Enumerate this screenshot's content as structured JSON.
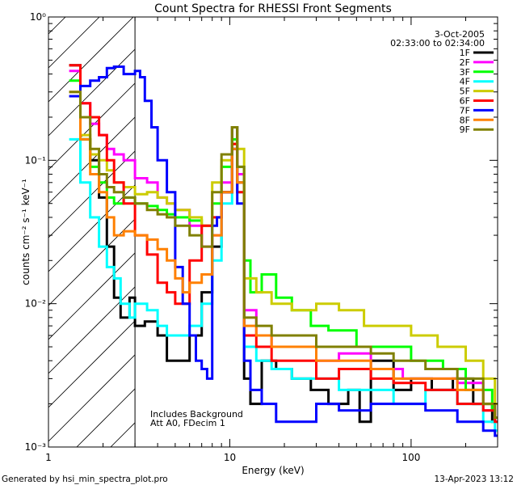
{
  "chart_data": {
    "type": "line",
    "title": "Count Spectra for RHESSI Front Segments",
    "xlabel": "Energy (keV)",
    "ylabel": "counts cm⁻² s⁻¹ keV⁻¹",
    "xscale": "log",
    "yscale": "log",
    "xlim": [
      1,
      300
    ],
    "ylim": [
      0.001,
      1
    ],
    "x_ticks": [
      {
        "value": 1,
        "label": "1"
      },
      {
        "value": 10,
        "label": "10"
      },
      {
        "value": 100,
        "label": "100"
      }
    ],
    "y_ticks": [
      {
        "value": 0.001,
        "label": "10⁻³"
      },
      {
        "value": 0.01,
        "label": "10⁻²"
      },
      {
        "value": 0.1,
        "label": "10⁻¹"
      },
      {
        "value": 1,
        "label": "10⁰"
      }
    ],
    "shaded_region": {
      "from": 1,
      "to": 3,
      "style": "diagonal-hatch"
    },
    "legend_location": "top-right",
    "date": "3-Oct-2005",
    "time_range": "02:33:00 to 02:34:00",
    "annotations": [
      "Includes Background",
      "Att A0, FDecim 1"
    ],
    "series": [
      {
        "name": "1F",
        "color": "#000000",
        "points": [
          [
            1.3,
            0.46
          ],
          [
            1.5,
            0.14
          ],
          [
            1.7,
            0.1
          ],
          [
            1.9,
            0.055
          ],
          [
            2.1,
            0.025
          ],
          [
            2.3,
            0.011
          ],
          [
            2.5,
            0.008
          ],
          [
            2.8,
            0.011
          ],
          [
            3.0,
            0.007
          ],
          [
            3.4,
            0.0075
          ],
          [
            4.0,
            0.006
          ],
          [
            4.5,
            0.004
          ],
          [
            5.0,
            0.004
          ],
          [
            6.0,
            0.006
          ],
          [
            7.0,
            0.012
          ],
          [
            8.0,
            0.025
          ],
          [
            9.0,
            0.06
          ],
          [
            10.3,
            0.17
          ],
          [
            11.0,
            0.07
          ],
          [
            12.0,
            0.003
          ],
          [
            13,
            0.002
          ],
          [
            15,
            0.004
          ],
          [
            18,
            0.0035
          ],
          [
            22,
            0.003
          ],
          [
            28,
            0.0025
          ],
          [
            35,
            0.002
          ],
          [
            45,
            0.0025
          ],
          [
            52,
            0.0015
          ],
          [
            60,
            0.004
          ],
          [
            80,
            0.0025
          ],
          [
            100,
            0.003
          ],
          [
            130,
            0.0025
          ],
          [
            170,
            0.003
          ],
          [
            220,
            0.002
          ],
          [
            280,
            0.0015
          ]
        ]
      },
      {
        "name": "2F",
        "color": "#ff00ff",
        "points": [
          [
            1.3,
            0.42
          ],
          [
            1.5,
            0.25
          ],
          [
            1.7,
            0.18
          ],
          [
            1.9,
            0.15
          ],
          [
            2.1,
            0.12
          ],
          [
            2.3,
            0.11
          ],
          [
            2.6,
            0.1
          ],
          [
            3.0,
            0.075
          ],
          [
            3.5,
            0.07
          ],
          [
            4.0,
            0.055
          ],
          [
            4.5,
            0.05
          ],
          [
            5.0,
            0.045
          ],
          [
            6.0,
            0.035
          ],
          [
            7.0,
            0.025
          ],
          [
            8.0,
            0.03
          ],
          [
            9.0,
            0.07
          ],
          [
            10.3,
            0.12
          ],
          [
            11.0,
            0.08
          ],
          [
            12.0,
            0.009
          ],
          [
            14,
            0.006
          ],
          [
            17,
            0.005
          ],
          [
            22,
            0.005
          ],
          [
            30,
            0.004
          ],
          [
            40,
            0.0045
          ],
          [
            60,
            0.0035
          ],
          [
            90,
            0.003
          ],
          [
            130,
            0.003
          ],
          [
            180,
            0.0028
          ],
          [
            250,
            0.0018
          ],
          [
            290,
            0.0015
          ]
        ]
      },
      {
        "name": "3F",
        "color": "#00ff00",
        "points": [
          [
            1.3,
            0.36
          ],
          [
            1.5,
            0.14
          ],
          [
            1.7,
            0.09
          ],
          [
            1.9,
            0.07
          ],
          [
            2.1,
            0.055
          ],
          [
            2.3,
            0.05
          ],
          [
            2.6,
            0.055
          ],
          [
            3.0,
            0.05
          ],
          [
            3.5,
            0.048
          ],
          [
            4.0,
            0.045
          ],
          [
            4.5,
            0.042
          ],
          [
            5.0,
            0.04
          ],
          [
            6.0,
            0.038
          ],
          [
            7.0,
            0.035
          ],
          [
            8.0,
            0.05
          ],
          [
            9.0,
            0.09
          ],
          [
            10.3,
            0.14
          ],
          [
            11.0,
            0.09
          ],
          [
            12.0,
            0.02
          ],
          [
            13,
            0.012
          ],
          [
            15,
            0.016
          ],
          [
            18,
            0.011
          ],
          [
            22,
            0.009
          ],
          [
            28,
            0.007
          ],
          [
            35,
            0.0065
          ],
          [
            50,
            0.005
          ],
          [
            70,
            0.005
          ],
          [
            100,
            0.004
          ],
          [
            150,
            0.0035
          ],
          [
            200,
            0.0025
          ],
          [
            280,
            0.0018
          ]
        ]
      },
      {
        "name": "4F",
        "color": "#00ffff",
        "points": [
          [
            1.3,
            0.14
          ],
          [
            1.5,
            0.07
          ],
          [
            1.7,
            0.04
          ],
          [
            1.9,
            0.025
          ],
          [
            2.1,
            0.018
          ],
          [
            2.3,
            0.015
          ],
          [
            2.5,
            0.01
          ],
          [
            2.8,
            0.008
          ],
          [
            3.0,
            0.01
          ],
          [
            3.5,
            0.009
          ],
          [
            4.0,
            0.007
          ],
          [
            4.5,
            0.006
          ],
          [
            5.0,
            0.006
          ],
          [
            6.0,
            0.007
          ],
          [
            7.0,
            0.01
          ],
          [
            8.0,
            0.02
          ],
          [
            9.0,
            0.05
          ],
          [
            10.3,
            0.13
          ],
          [
            11.0,
            0.06
          ],
          [
            12.0,
            0.005
          ],
          [
            14,
            0.004
          ],
          [
            17,
            0.0035
          ],
          [
            22,
            0.003
          ],
          [
            30,
            0.003
          ],
          [
            40,
            0.0025
          ],
          [
            60,
            0.0025
          ],
          [
            80,
            0.002
          ],
          [
            120,
            0.0025
          ],
          [
            180,
            0.002
          ],
          [
            250,
            0.0015
          ],
          [
            290,
            0.0013
          ]
        ]
      },
      {
        "name": "5F",
        "color": "#cccc00",
        "points": [
          [
            1.3,
            0.28
          ],
          [
            1.5,
            0.15
          ],
          [
            1.7,
            0.11
          ],
          [
            1.9,
            0.1
          ],
          [
            2.1,
            0.085
          ],
          [
            2.3,
            0.07
          ],
          [
            2.6,
            0.065
          ],
          [
            3.0,
            0.058
          ],
          [
            3.5,
            0.06
          ],
          [
            4.0,
            0.055
          ],
          [
            4.5,
            0.05
          ],
          [
            5.0,
            0.045
          ],
          [
            6.0,
            0.04
          ],
          [
            7.0,
            0.035
          ],
          [
            8.0,
            0.07
          ],
          [
            9.0,
            0.1
          ],
          [
            10.3,
            0.13
          ],
          [
            11.0,
            0.12
          ],
          [
            12.0,
            0.015
          ],
          [
            14,
            0.012
          ],
          [
            17,
            0.01
          ],
          [
            22,
            0.009
          ],
          [
            30,
            0.01
          ],
          [
            40,
            0.009
          ],
          [
            55,
            0.007
          ],
          [
            75,
            0.007
          ],
          [
            100,
            0.006
          ],
          [
            140,
            0.005
          ],
          [
            200,
            0.004
          ],
          [
            250,
            0.003
          ],
          [
            290,
            0.002
          ]
        ]
      },
      {
        "name": "6F",
        "color": "#ff0000",
        "points": [
          [
            1.3,
            0.46
          ],
          [
            1.5,
            0.25
          ],
          [
            1.7,
            0.2
          ],
          [
            1.9,
            0.15
          ],
          [
            2.1,
            0.1
          ],
          [
            2.3,
            0.07
          ],
          [
            2.6,
            0.05
          ],
          [
            3.0,
            0.03
          ],
          [
            3.5,
            0.022
          ],
          [
            4.0,
            0.014
          ],
          [
            4.5,
            0.012
          ],
          [
            5.0,
            0.01
          ],
          [
            6.0,
            0.02
          ],
          [
            7.0,
            0.035
          ],
          [
            8.0,
            0.04
          ],
          [
            9.0,
            0.06
          ],
          [
            10.3,
            0.13
          ],
          [
            11.0,
            0.06
          ],
          [
            12.0,
            0.006
          ],
          [
            14,
            0.005
          ],
          [
            17,
            0.004
          ],
          [
            22,
            0.004
          ],
          [
            30,
            0.003
          ],
          [
            40,
            0.0035
          ],
          [
            60,
            0.003
          ],
          [
            80,
            0.0028
          ],
          [
            120,
            0.0025
          ],
          [
            180,
            0.002
          ],
          [
            250,
            0.0018
          ],
          [
            290,
            0.0015
          ]
        ]
      },
      {
        "name": "7F",
        "color": "#0000ff",
        "points": [
          [
            1.3,
            0.28
          ],
          [
            1.5,
            0.33
          ],
          [
            1.7,
            0.36
          ],
          [
            1.9,
            0.38
          ],
          [
            2.1,
            0.44
          ],
          [
            2.3,
            0.45
          ],
          [
            2.6,
            0.4
          ],
          [
            3.0,
            0.42
          ],
          [
            3.2,
            0.38
          ],
          [
            3.4,
            0.26
          ],
          [
            3.7,
            0.17
          ],
          [
            4.0,
            0.1
          ],
          [
            4.5,
            0.06
          ],
          [
            5.0,
            0.018
          ],
          [
            5.5,
            0.01
          ],
          [
            6.0,
            0.006
          ],
          [
            6.5,
            0.004
          ],
          [
            7.0,
            0.0035
          ],
          [
            7.5,
            0.003
          ],
          [
            8.0,
            0.035
          ],
          [
            8.5,
            0.04
          ],
          [
            9.0,
            0.06
          ],
          [
            10.3,
            0.12
          ],
          [
            11.0,
            0.05
          ],
          [
            12.0,
            0.004
          ],
          [
            13,
            0.0025
          ],
          [
            15,
            0.002
          ],
          [
            18,
            0.0015
          ],
          [
            22,
            0.0015
          ],
          [
            30,
            0.002
          ],
          [
            40,
            0.0018
          ],
          [
            60,
            0.002
          ],
          [
            80,
            0.002
          ],
          [
            120,
            0.0018
          ],
          [
            180,
            0.0015
          ],
          [
            250,
            0.0013
          ],
          [
            290,
            0.0012
          ]
        ]
      },
      {
        "name": "8F",
        "color": "#ff8000",
        "points": [
          [
            1.3,
            0.3
          ],
          [
            1.5,
            0.14
          ],
          [
            1.7,
            0.08
          ],
          [
            1.9,
            0.06
          ],
          [
            2.1,
            0.04
          ],
          [
            2.3,
            0.03
          ],
          [
            2.6,
            0.032
          ],
          [
            3.0,
            0.03
          ],
          [
            3.5,
            0.028
          ],
          [
            4.0,
            0.024
          ],
          [
            4.5,
            0.02
          ],
          [
            5.0,
            0.015
          ],
          [
            5.5,
            0.012
          ],
          [
            6.0,
            0.014
          ],
          [
            7.0,
            0.016
          ],
          [
            8.0,
            0.03
          ],
          [
            9.0,
            0.06
          ],
          [
            10.3,
            0.12
          ],
          [
            11.0,
            0.07
          ],
          [
            12.0,
            0.007
          ],
          [
            14,
            0.006
          ],
          [
            17,
            0.005
          ],
          [
            22,
            0.005
          ],
          [
            30,
            0.004
          ],
          [
            40,
            0.004
          ],
          [
            60,
            0.0035
          ],
          [
            80,
            0.003
          ],
          [
            120,
            0.003
          ],
          [
            180,
            0.0025
          ],
          [
            250,
            0.002
          ],
          [
            290,
            0.0016
          ]
        ]
      },
      {
        "name": "9F",
        "color": "#808000",
        "points": [
          [
            1.3,
            0.3
          ],
          [
            1.5,
            0.2
          ],
          [
            1.7,
            0.12
          ],
          [
            1.9,
            0.08
          ],
          [
            2.1,
            0.065
          ],
          [
            2.3,
            0.06
          ],
          [
            2.6,
            0.055
          ],
          [
            3.0,
            0.05
          ],
          [
            3.5,
            0.045
          ],
          [
            4.0,
            0.042
          ],
          [
            4.5,
            0.04
          ],
          [
            5.0,
            0.035
          ],
          [
            6.0,
            0.03
          ],
          [
            7.0,
            0.025
          ],
          [
            8.0,
            0.06
          ],
          [
            9.0,
            0.11
          ],
          [
            10.3,
            0.17
          ],
          [
            11.0,
            0.09
          ],
          [
            12.0,
            0.008
          ],
          [
            14,
            0.007
          ],
          [
            17,
            0.006
          ],
          [
            22,
            0.006
          ],
          [
            30,
            0.005
          ],
          [
            40,
            0.005
          ],
          [
            60,
            0.0045
          ],
          [
            80,
            0.004
          ],
          [
            120,
            0.0035
          ],
          [
            180,
            0.003
          ],
          [
            250,
            0.002
          ],
          [
            290,
            0.0016
          ]
        ]
      }
    ]
  },
  "footer": {
    "generated_by": "Generated by hsi_min_spectra_plot.pro",
    "timestamp": "13-Apr-2023 13:12"
  }
}
